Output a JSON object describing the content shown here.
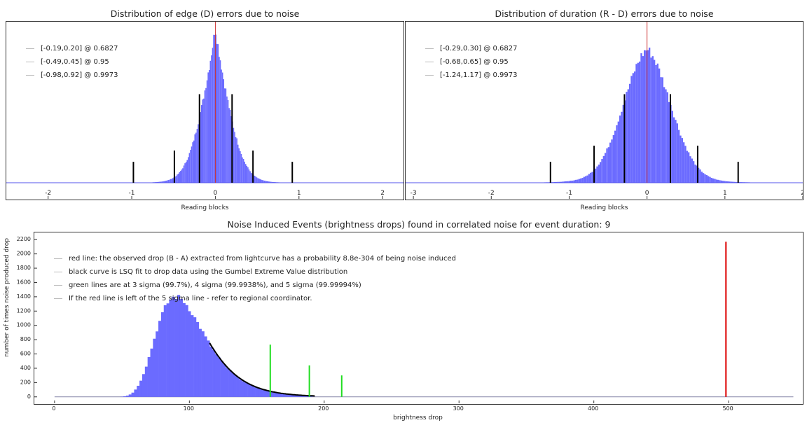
{
  "chart_data": [
    {
      "type": "bar",
      "title": "Distribution of edge (D) errors due to noise",
      "xlabel": "Reading blocks",
      "ylabel": "",
      "xlim": [
        -2.5,
        2.25
      ],
      "xticks": [
        -2,
        -1,
        0,
        1,
        2
      ],
      "distribution": {
        "mean": 0.0,
        "sigma": 0.195,
        "shape": "laplace-like",
        "peak_fraction_of_height": 0.97
      },
      "center_line": {
        "x": 0.0,
        "color": "#cc3333"
      },
      "interval_lines": [
        {
          "x": -0.19,
          "height_fraction": 0.55
        },
        {
          "x": 0.2,
          "height_fraction": 0.55
        },
        {
          "x": -0.49,
          "height_fraction": 0.2
        },
        {
          "x": 0.45,
          "height_fraction": 0.2
        },
        {
          "x": -0.98,
          "height_fraction": 0.13
        },
        {
          "x": 0.92,
          "height_fraction": 0.13
        }
      ],
      "legend": [
        "[-0.19,0.20] @ 0.6827",
        "[-0.49,0.45] @ 0.95",
        "[-0.98,0.92] @ 0.9973"
      ],
      "legend_position": "top-left",
      "colors": {
        "bars": "#6b6bff",
        "lines": "#000000"
      }
    },
    {
      "type": "bar",
      "title": "Distribution of duration (R - D) errors due to noise",
      "xlabel": "Reading blocks",
      "ylabel": "",
      "xlim": [
        -3.1,
        2.0
      ],
      "xticks": [
        -3,
        -2,
        -1,
        0,
        1,
        2
      ],
      "distribution": {
        "mean": 0.0,
        "sigma": 0.31,
        "shape": "gaussian-like",
        "peak_fraction_of_height": 0.83
      },
      "center_line": {
        "x": 0.0,
        "color": "#cc3333"
      },
      "interval_lines": [
        {
          "x": -0.29,
          "height_fraction": 0.55
        },
        {
          "x": 0.3,
          "height_fraction": 0.55
        },
        {
          "x": -0.68,
          "height_fraction": 0.23
        },
        {
          "x": 0.65,
          "height_fraction": 0.23
        },
        {
          "x": -1.24,
          "height_fraction": 0.13
        },
        {
          "x": 1.17,
          "height_fraction": 0.13
        }
      ],
      "legend": [
        "[-0.29,0.30] @ 0.6827",
        "[-0.68,0.65] @ 0.95",
        "[-1.24,1.17] @ 0.9973"
      ],
      "legend_position": "top-left",
      "colors": {
        "bars": "#6b6bff",
        "lines": "#000000"
      }
    },
    {
      "type": "bar",
      "title": "Noise Induced Events (brightness drops) found in correlated noise for event duration: 9",
      "xlabel": "brightness drop",
      "ylabel": "number of times noise produced drop",
      "xlim": [
        -15,
        555
      ],
      "ylim": [
        -100,
        2300
      ],
      "xticks": [
        0,
        100,
        200,
        300,
        400,
        500
      ],
      "yticks": [
        0,
        200,
        400,
        600,
        800,
        1000,
        1200,
        1400,
        1600,
        1800,
        2000,
        2200
      ],
      "histogram": {
        "mode": 90,
        "peak": 1400,
        "gumbel_beta": 18
      },
      "fit_curve": {
        "name": "Gumbel fit",
        "x_start": 115,
        "x_end": 193,
        "color": "#000000"
      },
      "green_lines": [
        {
          "x": 160,
          "y": 730
        },
        {
          "x": 189,
          "y": 440
        },
        {
          "x": 213,
          "y": 300
        }
      ],
      "red_line": {
        "x": 498,
        "y": 2170
      },
      "baseline_end": 548,
      "legend": [
        "red line: the observed drop (B - A) extracted from lightcurve has a probability 8.8e-304 of being noise induced",
        "black curve is LSQ fit to drop data using the Gumbel Extreme Value distribution",
        "green lines are at 3 sigma (99.7%), 4 sigma (99.9938%), and 5 sigma (99.99994%)",
        "If the red line is left of the 5 sigma line - refer to regional coordinator."
      ],
      "legend_position": "top-left",
      "colors": {
        "bars": "#6b6bff",
        "fit": "#000000",
        "green": "#22dd22",
        "red": "#dd0000"
      }
    }
  ]
}
